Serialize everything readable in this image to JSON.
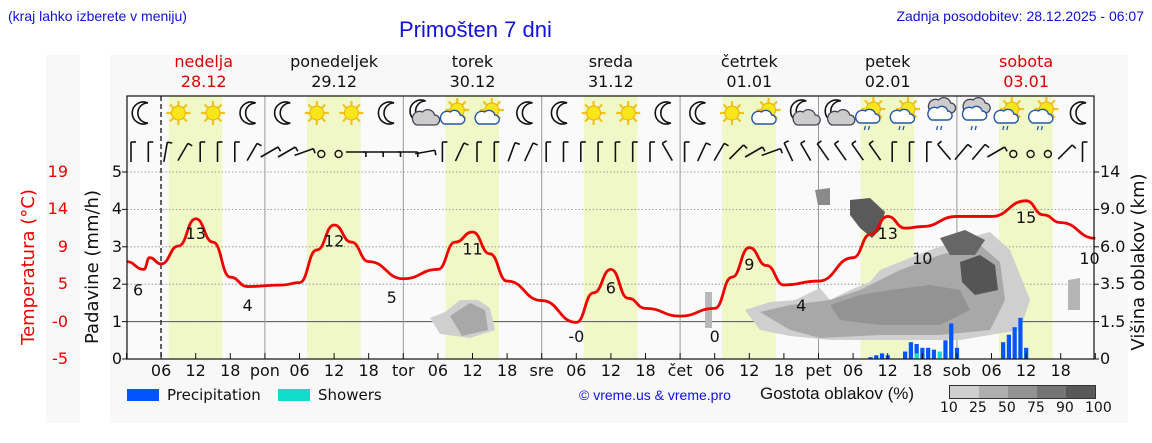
{
  "header": {
    "location_hint": "(kraj lahko izberete v meniju)",
    "title": "Primošten 7 dni",
    "last_update": "Zadnja posodobitev: 28.12.2025 - 06:07"
  },
  "days": [
    {
      "name": "nedelja",
      "date": "28.12",
      "weekend": true
    },
    {
      "name": "ponedeljek",
      "date": "29.12",
      "weekend": false
    },
    {
      "name": "torek",
      "date": "30.12",
      "weekend": false
    },
    {
      "name": "sreda",
      "date": "31.12",
      "weekend": false
    },
    {
      "name": "četrtek",
      "date": "01.01",
      "weekend": false
    },
    {
      "name": "petek",
      "date": "02.01",
      "weekend": false
    },
    {
      "name": "sobota",
      "date": "03.01",
      "weekend": true
    }
  ],
  "axes": {
    "temp_label": "Temperatura (°C)",
    "precip_label": "Padavine (mm/h)",
    "cloud_label": "Višina oblakov (km)",
    "temp_ticks": [
      "19",
      "14",
      "9",
      "5",
      "-0",
      "-5"
    ],
    "precip_ticks": [
      "5",
      "4",
      "3",
      "2",
      "1",
      "0"
    ],
    "cloud_ticks": [
      "14",
      "9.0",
      "6.0",
      "3.5",
      "1.5",
      "0"
    ],
    "x_ticks": [
      "06",
      "12",
      "18",
      "pon",
      "06",
      "12",
      "18",
      "tor",
      "06",
      "12",
      "18",
      "sre",
      "06",
      "12",
      "18",
      "čet",
      "06",
      "12",
      "18",
      "pet",
      "06",
      "12",
      "18",
      "sob",
      "06",
      "12",
      "18"
    ]
  },
  "legend": {
    "precipitation": "Precipitation",
    "showers": "Showers",
    "copyright": "© vreme.us & vreme.pro",
    "cloud_density_label": "Gostota oblakov (%)",
    "cloud_scale": [
      "10",
      "25",
      "50",
      "75",
      "90",
      "100"
    ]
  },
  "colors": {
    "temperature": "#ee0000",
    "precipitation": "#0055ff",
    "showers": "#11ddcc",
    "daylight": "#f0f8c8",
    "title": "#1010e0"
  },
  "chart_data": {
    "type": "line",
    "title": "Primošten 7 dni",
    "xlabel": "",
    "ylabel": "Temperatura (°C)",
    "x_range": [
      "28.12 00:00",
      "03.01 24:00"
    ],
    "series": [
      {
        "name": "Temperatura (°C)",
        "points": [
          {
            "t": "28.12 00",
            "v": 7.5
          },
          {
            "t": "28.12 03",
            "v": 6.5
          },
          {
            "t": "28.12 04",
            "v": 8
          },
          {
            "t": "28.12 06",
            "v": 7.2
          },
          {
            "t": "28.12 09",
            "v": 9.5
          },
          {
            "t": "28.12 12",
            "v": 13
          },
          {
            "t": "28.12 15",
            "v": 10
          },
          {
            "t": "28.12 18",
            "v": 5.5
          },
          {
            "t": "28.12 21",
            "v": 4.3
          },
          {
            "t": "29.12 03",
            "v": 4.5
          },
          {
            "t": "29.12 06",
            "v": 4.8
          },
          {
            "t": "29.12 09",
            "v": 9
          },
          {
            "t": "29.12 12",
            "v": 12.2
          },
          {
            "t": "29.12 15",
            "v": 10
          },
          {
            "t": "29.12 18",
            "v": 7.5
          },
          {
            "t": "30.12 00",
            "v": 5.3
          },
          {
            "t": "30.12 06",
            "v": 6.5
          },
          {
            "t": "30.12 09",
            "v": 10
          },
          {
            "t": "30.12 12",
            "v": 11.3
          },
          {
            "t": "30.12 15",
            "v": 8.5
          },
          {
            "t": "30.12 18",
            "v": 5
          },
          {
            "t": "31.12 00",
            "v": 2.5
          },
          {
            "t": "31.12 06",
            "v": -0.3
          },
          {
            "t": "31.12 09",
            "v": 3.5
          },
          {
            "t": "31.12 12",
            "v": 6.5
          },
          {
            "t": "31.12 15",
            "v": 2.8
          },
          {
            "t": "31.12 18",
            "v": 1.5
          },
          {
            "t": "01.01 00",
            "v": 0.5
          },
          {
            "t": "01.01 06",
            "v": 1.5
          },
          {
            "t": "01.01 09",
            "v": 5.5
          },
          {
            "t": "01.01 12",
            "v": 9.3
          },
          {
            "t": "01.01 15",
            "v": 7
          },
          {
            "t": "01.01 18",
            "v": 4.5
          },
          {
            "t": "02.01 00",
            "v": 5
          },
          {
            "t": "02.01 06",
            "v": 8
          },
          {
            "t": "02.01 09",
            "v": 11
          },
          {
            "t": "02.01 12",
            "v": 13.3
          },
          {
            "t": "02.01 15",
            "v": 11.8
          },
          {
            "t": "02.01 18",
            "v": 12
          },
          {
            "t": "03.01 00",
            "v": 13.3
          },
          {
            "t": "03.01 06",
            "v": 13.3
          },
          {
            "t": "03.01 12",
            "v": 15.3
          },
          {
            "t": "03.01 15",
            "v": 13.5
          },
          {
            "t": "03.01 18",
            "v": 12.5
          },
          {
            "t": "03.01 24",
            "v": 10.5
          }
        ],
        "labels": [
          {
            "t": "28.12 02",
            "v": 6
          },
          {
            "t": "28.12 12",
            "v": 13
          },
          {
            "t": "28.12 21",
            "v": 4
          },
          {
            "t": "29.12 12",
            "v": 12
          },
          {
            "t": "29.12 22",
            "v": 5
          },
          {
            "t": "30.12 12",
            "v": 11
          },
          {
            "t": "31.12 06",
            "v": 0
          },
          {
            "t": "31.12 12",
            "v": 6
          },
          {
            "t": "01.01 06",
            "v": 0
          },
          {
            "t": "01.01 12",
            "v": 9
          },
          {
            "t": "01.01 21",
            "v": 4
          },
          {
            "t": "02.01 12",
            "v": 13
          },
          {
            "t": "02.01 18",
            "v": 10
          },
          {
            "t": "03.01 12",
            "v": 15
          },
          {
            "t": "03.01 23",
            "v": 10
          }
        ]
      },
      {
        "name": "Precipitation (mm/h)",
        "points": [
          {
            "t": "02.01 09",
            "v": 0.05
          },
          {
            "t": "02.01 10",
            "v": 0.1
          },
          {
            "t": "02.01 11",
            "v": 0.15
          },
          {
            "t": "02.01 12",
            "v": 0.1
          },
          {
            "t": "02.01 15",
            "v": 0.2
          },
          {
            "t": "02.01 16",
            "v": 0.45
          },
          {
            "t": "02.01 17",
            "v": 0.4
          },
          {
            "t": "02.01 18",
            "v": 0.3
          },
          {
            "t": "02.01 19",
            "v": 0.3
          },
          {
            "t": "02.01 20",
            "v": 0.25
          },
          {
            "t": "02.01 22",
            "v": 0.5
          },
          {
            "t": "02.01 23",
            "v": 0.95
          },
          {
            "t": "03.01 00",
            "v": 0.3
          },
          {
            "t": "03.01 08",
            "v": 0.45
          },
          {
            "t": "03.01 09",
            "v": 0.65
          },
          {
            "t": "03.01 10",
            "v": 0.85
          },
          {
            "t": "03.01 11",
            "v": 1.1
          },
          {
            "t": "03.01 12",
            "v": 0.3
          }
        ]
      },
      {
        "name": "Showers (mm/h)",
        "points": [
          {
            "t": "02.01 17",
            "v": 0.15
          },
          {
            "t": "02.01 21",
            "v": 0.2
          }
        ]
      }
    ],
    "y_axes": {
      "precip": {
        "label": "Padavine (mm/h)",
        "range": [
          0,
          5
        ]
      },
      "temp": {
        "label": "Temperatura (°C)",
        "ticks": [
          19,
          14,
          9,
          5,
          0,
          -5
        ]
      },
      "cloud": {
        "label": "Višina oblakov (km)",
        "ticks": [
          14,
          9.0,
          6.0,
          3.5,
          1.5,
          0
        ]
      }
    },
    "grid": true,
    "legend": [
      "Precipitation",
      "Showers",
      "Gostota oblakov (%)"
    ]
  },
  "weather_icons": [
    "moon",
    "sun",
    "sun",
    "moon",
    "moon",
    "sun",
    "sun",
    "moon",
    "moon-cloud",
    "sun-cloud",
    "sun-cloud",
    "moon",
    "moon",
    "sun",
    "sun",
    "moon",
    "moon",
    "sun",
    "sun-cloud",
    "moon-cloud",
    "moon-cloud",
    "sun-cloud-rain",
    "sun-cloud-rain",
    "cloud-rain",
    "cloud-rain",
    "sun-cloud-rain",
    "sun-cloud-rain",
    "moon"
  ]
}
